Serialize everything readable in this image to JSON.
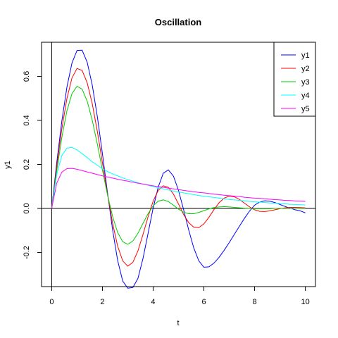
{
  "chart_data": {
    "type": "line",
    "title": "Oscillation",
    "xlabel": "t",
    "ylabel": "y1",
    "xlim": [
      -0.4,
      10.4
    ],
    "ylim": [
      -0.355,
      0.755
    ],
    "x_ticks": [
      0,
      2,
      4,
      6,
      8,
      10
    ],
    "y_ticks": [
      -0.2,
      0.0,
      0.2,
      0.4,
      0.6
    ],
    "y_tick_labels": [
      "-0.2",
      "0.0",
      "0.2",
      "0.4",
      "0.6"
    ],
    "reference_lines": {
      "horizontal_at": 0,
      "vertical_at": 0
    },
    "legend_position": "top-right",
    "grid": false,
    "x": [
      0,
      0.2,
      0.4,
      0.6,
      0.8,
      1.0,
      1.2,
      1.4,
      1.6,
      1.8,
      2.0,
      2.2,
      2.4,
      2.6,
      2.8,
      3.0,
      3.2,
      3.4,
      3.6,
      3.8,
      4.0,
      4.2,
      4.4,
      4.6,
      4.8,
      5.0,
      5.2,
      5.4,
      5.6,
      5.8,
      6.0,
      6.2,
      6.4,
      6.6,
      6.8,
      7.0,
      7.2,
      7.4,
      7.6,
      7.8,
      8.0,
      8.2,
      8.4,
      8.6,
      8.8,
      9.0,
      9.2,
      9.4,
      9.6,
      9.8,
      10.0
    ],
    "series": [
      {
        "name": "y1",
        "color": "#0000ff",
        "values": [
          0,
          0.209,
          0.397,
          0.551,
          0.661,
          0.718,
          0.719,
          0.664,
          0.56,
          0.417,
          0.249,
          0.072,
          -0.096,
          -0.236,
          -0.33,
          -0.362,
          -0.359,
          -0.318,
          -0.227,
          -0.113,
          0.002,
          0.097,
          0.16,
          0.175,
          0.147,
          0.082,
          -0.005,
          -0.097,
          -0.179,
          -0.238,
          -0.267,
          -0.265,
          -0.248,
          -0.222,
          -0.19,
          -0.155,
          -0.118,
          -0.081,
          -0.045,
          -0.012,
          0.015,
          0.029,
          0.035,
          0.033,
          0.027,
          0.018,
          0.009,
          0.001,
          -0.006,
          -0.011,
          -0.02
        ]
      },
      {
        "name": "y2",
        "color": "#ff0000",
        "values": [
          0,
          0.191,
          0.362,
          0.499,
          0.593,
          0.636,
          0.627,
          0.571,
          0.475,
          0.35,
          0.208,
          0.065,
          -0.066,
          -0.171,
          -0.238,
          -0.262,
          -0.245,
          -0.193,
          -0.118,
          -0.038,
          0.033,
          0.082,
          0.103,
          0.096,
          0.065,
          0.02,
          -0.027,
          -0.064,
          -0.085,
          -0.087,
          -0.07,
          -0.04,
          -0.005,
          0.026,
          0.047,
          0.056,
          0.053,
          0.041,
          0.024,
          0.007,
          -0.006,
          -0.013,
          -0.014,
          -0.011,
          -0.006,
          -0.001,
          0.003,
          0.005,
          0.005,
          0.004,
          0.003
        ]
      },
      {
        "name": "y3",
        "color": "#00cc00",
        "values": [
          0,
          0.171,
          0.323,
          0.443,
          0.522,
          0.555,
          0.542,
          0.487,
          0.4,
          0.292,
          0.175,
          0.062,
          -0.036,
          -0.109,
          -0.151,
          -0.163,
          -0.148,
          -0.113,
          -0.068,
          -0.024,
          0.012,
          0.033,
          0.039,
          0.031,
          0.015,
          -0.003,
          -0.017,
          -0.024,
          -0.024,
          -0.018,
          -0.01,
          -0.002,
          0.004,
          0.007,
          0.008,
          0.007,
          0.005,
          0.003,
          0.001,
          0.0,
          -0.001,
          -0.001,
          -0.001,
          -0.001,
          0.0,
          0.0,
          0.0,
          0.0,
          0.0,
          0.0,
          0.0
        ]
      },
      {
        "name": "y4",
        "color": "#00ffff",
        "values": [
          0,
          0.155,
          0.24,
          0.274,
          0.277,
          0.266,
          0.249,
          0.231,
          0.212,
          0.196,
          0.181,
          0.168,
          0.157,
          0.148,
          0.139,
          0.131,
          0.124,
          0.117,
          0.111,
          0.105,
          0.099,
          0.094,
          0.089,
          0.084,
          0.079,
          0.075,
          0.071,
          0.067,
          0.063,
          0.059,
          0.056,
          0.053,
          0.05,
          0.047,
          0.044,
          0.041,
          0.039,
          0.037,
          0.034,
          0.032,
          0.03,
          0.029,
          0.027,
          0.025,
          0.024,
          0.022,
          0.021,
          0.019,
          0.018,
          0.017,
          0.016
        ]
      },
      {
        "name": "y5",
        "color": "#ff00ff",
        "values": [
          0,
          0.115,
          0.165,
          0.181,
          0.182,
          0.178,
          0.172,
          0.166,
          0.16,
          0.154,
          0.148,
          0.143,
          0.138,
          0.133,
          0.128,
          0.124,
          0.119,
          0.115,
          0.111,
          0.107,
          0.103,
          0.099,
          0.096,
          0.092,
          0.089,
          0.086,
          0.082,
          0.079,
          0.076,
          0.073,
          0.071,
          0.068,
          0.065,
          0.063,
          0.06,
          0.058,
          0.056,
          0.054,
          0.051,
          0.049,
          0.047,
          0.046,
          0.044,
          0.042,
          0.04,
          0.039,
          0.037,
          0.036,
          0.034,
          0.033,
          0.032
        ]
      }
    ]
  }
}
